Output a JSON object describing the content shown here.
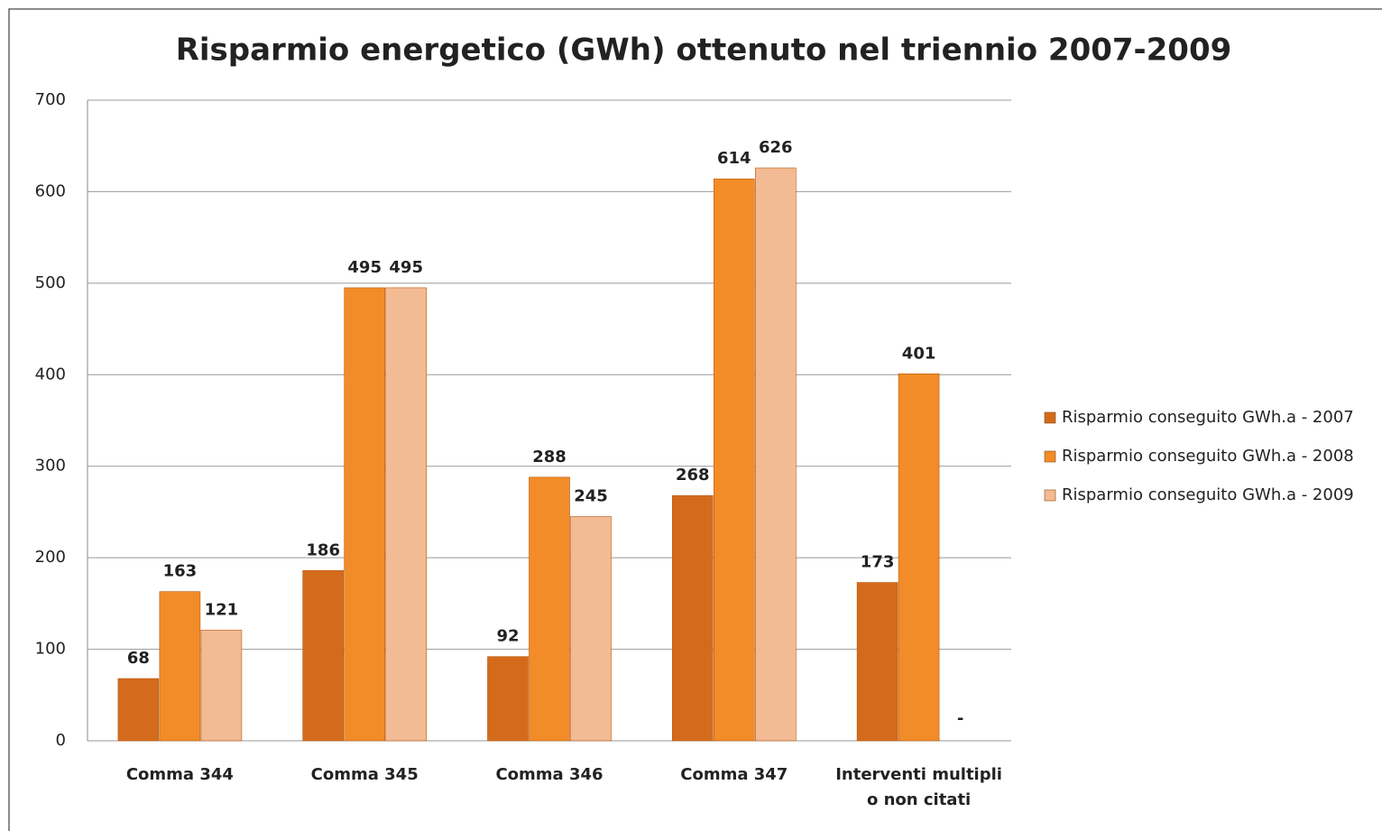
{
  "chart_data": {
    "type": "bar",
    "title": "Risparmio energetico (GWh) ottenuto nel triennio 2007-2009",
    "categories": [
      "Comma 344",
      "Comma 345",
      "Comma 346",
      "Comma 347",
      "Interventi multipli o non citati"
    ],
    "series": [
      {
        "name": "Risparmio conseguito GWh.a - 2007",
        "color": "#d46b1c",
        "values": [
          68,
          186,
          92,
          268,
          173
        ]
      },
      {
        "name": "Risparmio conseguito GWh.a - 2008",
        "color": "#f28c28",
        "values": [
          163,
          495,
          288,
          614,
          401
        ]
      },
      {
        "name": "Risparmio conseguito GWh.a - 2009",
        "color": "#f3bb94",
        "values": [
          121,
          495,
          245,
          626,
          null
        ],
        "value_labels": [
          "121",
          "495",
          "245",
          "626",
          "-"
        ]
      }
    ],
    "ylim": [
      0,
      700
    ],
    "yticks": [
      0,
      100,
      200,
      300,
      400,
      500,
      600,
      700
    ],
    "grid": true,
    "legend": "right"
  }
}
